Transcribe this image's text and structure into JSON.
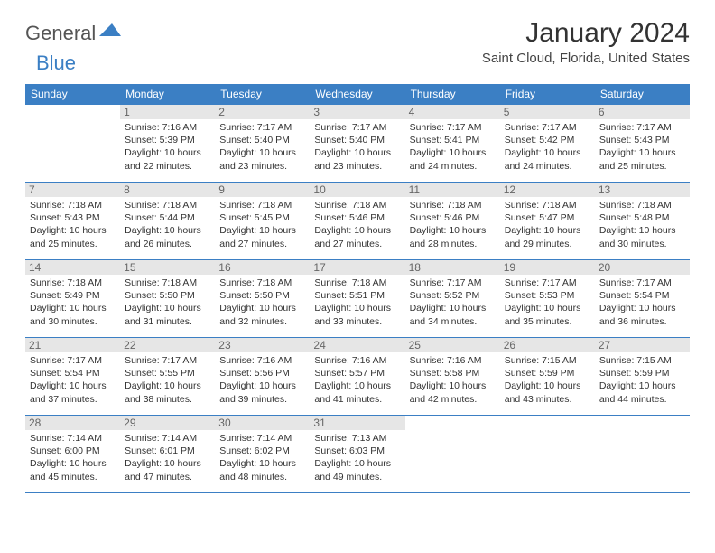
{
  "logo": {
    "part1": "General",
    "part2": "Blue"
  },
  "title": "January 2024",
  "location": "Saint Cloud, Florida, United States",
  "colors": {
    "header_bg": "#3b7fc4",
    "header_text": "#ffffff",
    "daynum_bg": "#e6e6e6",
    "text": "#333333",
    "border": "#3b7fc4"
  },
  "dayHeaders": [
    "Sunday",
    "Monday",
    "Tuesday",
    "Wednesday",
    "Thursday",
    "Friday",
    "Saturday"
  ],
  "weeks": [
    [
      null,
      {
        "n": "1",
        "sr": "7:16 AM",
        "ss": "5:39 PM",
        "dl": "10 hours and 22 minutes."
      },
      {
        "n": "2",
        "sr": "7:17 AM",
        "ss": "5:40 PM",
        "dl": "10 hours and 23 minutes."
      },
      {
        "n": "3",
        "sr": "7:17 AM",
        "ss": "5:40 PM",
        "dl": "10 hours and 23 minutes."
      },
      {
        "n": "4",
        "sr": "7:17 AM",
        "ss": "5:41 PM",
        "dl": "10 hours and 24 minutes."
      },
      {
        "n": "5",
        "sr": "7:17 AM",
        "ss": "5:42 PM",
        "dl": "10 hours and 24 minutes."
      },
      {
        "n": "6",
        "sr": "7:17 AM",
        "ss": "5:43 PM",
        "dl": "10 hours and 25 minutes."
      }
    ],
    [
      {
        "n": "7",
        "sr": "7:18 AM",
        "ss": "5:43 PM",
        "dl": "10 hours and 25 minutes."
      },
      {
        "n": "8",
        "sr": "7:18 AM",
        "ss": "5:44 PM",
        "dl": "10 hours and 26 minutes."
      },
      {
        "n": "9",
        "sr": "7:18 AM",
        "ss": "5:45 PM",
        "dl": "10 hours and 27 minutes."
      },
      {
        "n": "10",
        "sr": "7:18 AM",
        "ss": "5:46 PM",
        "dl": "10 hours and 27 minutes."
      },
      {
        "n": "11",
        "sr": "7:18 AM",
        "ss": "5:46 PM",
        "dl": "10 hours and 28 minutes."
      },
      {
        "n": "12",
        "sr": "7:18 AM",
        "ss": "5:47 PM",
        "dl": "10 hours and 29 minutes."
      },
      {
        "n": "13",
        "sr": "7:18 AM",
        "ss": "5:48 PM",
        "dl": "10 hours and 30 minutes."
      }
    ],
    [
      {
        "n": "14",
        "sr": "7:18 AM",
        "ss": "5:49 PM",
        "dl": "10 hours and 30 minutes."
      },
      {
        "n": "15",
        "sr": "7:18 AM",
        "ss": "5:50 PM",
        "dl": "10 hours and 31 minutes."
      },
      {
        "n": "16",
        "sr": "7:18 AM",
        "ss": "5:50 PM",
        "dl": "10 hours and 32 minutes."
      },
      {
        "n": "17",
        "sr": "7:18 AM",
        "ss": "5:51 PM",
        "dl": "10 hours and 33 minutes."
      },
      {
        "n": "18",
        "sr": "7:17 AM",
        "ss": "5:52 PM",
        "dl": "10 hours and 34 minutes."
      },
      {
        "n": "19",
        "sr": "7:17 AM",
        "ss": "5:53 PM",
        "dl": "10 hours and 35 minutes."
      },
      {
        "n": "20",
        "sr": "7:17 AM",
        "ss": "5:54 PM",
        "dl": "10 hours and 36 minutes."
      }
    ],
    [
      {
        "n": "21",
        "sr": "7:17 AM",
        "ss": "5:54 PM",
        "dl": "10 hours and 37 minutes."
      },
      {
        "n": "22",
        "sr": "7:17 AM",
        "ss": "5:55 PM",
        "dl": "10 hours and 38 minutes."
      },
      {
        "n": "23",
        "sr": "7:16 AM",
        "ss": "5:56 PM",
        "dl": "10 hours and 39 minutes."
      },
      {
        "n": "24",
        "sr": "7:16 AM",
        "ss": "5:57 PM",
        "dl": "10 hours and 41 minutes."
      },
      {
        "n": "25",
        "sr": "7:16 AM",
        "ss": "5:58 PM",
        "dl": "10 hours and 42 minutes."
      },
      {
        "n": "26",
        "sr": "7:15 AM",
        "ss": "5:59 PM",
        "dl": "10 hours and 43 minutes."
      },
      {
        "n": "27",
        "sr": "7:15 AM",
        "ss": "5:59 PM",
        "dl": "10 hours and 44 minutes."
      }
    ],
    [
      {
        "n": "28",
        "sr": "7:14 AM",
        "ss": "6:00 PM",
        "dl": "10 hours and 45 minutes."
      },
      {
        "n": "29",
        "sr": "7:14 AM",
        "ss": "6:01 PM",
        "dl": "10 hours and 47 minutes."
      },
      {
        "n": "30",
        "sr": "7:14 AM",
        "ss": "6:02 PM",
        "dl": "10 hours and 48 minutes."
      },
      {
        "n": "31",
        "sr": "7:13 AM",
        "ss": "6:03 PM",
        "dl": "10 hours and 49 minutes."
      },
      null,
      null,
      null
    ]
  ],
  "labels": {
    "sunrise": "Sunrise:",
    "sunset": "Sunset:",
    "daylight": "Daylight:"
  }
}
